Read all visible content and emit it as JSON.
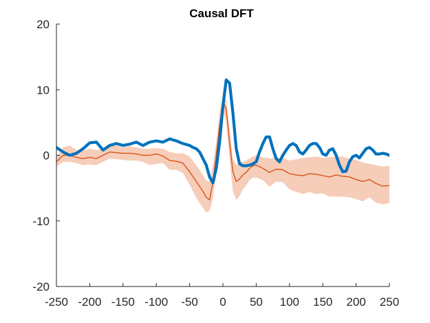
{
  "chart_data": {
    "type": "line",
    "title": "Causal DFT",
    "xlabel": "",
    "ylabel": "",
    "xlim": [
      -250,
      250
    ],
    "ylim": [
      -20,
      20
    ],
    "xticks": [
      -250,
      -200,
      -150,
      -100,
      -50,
      0,
      50,
      100,
      150,
      200,
      250
    ],
    "yticks": [
      -20,
      -10,
      0,
      10,
      20
    ],
    "grid": false,
    "legend": "none",
    "series": [
      {
        "name": "",
        "role": "mean-with-band",
        "color": "#D95319",
        "band_color": "#F6CDB9",
        "x": [
          -250,
          -240,
          -230,
          -220,
          -210,
          -200,
          -190,
          -180,
          -170,
          -160,
          -150,
          -140,
          -130,
          -120,
          -110,
          -100,
          -90,
          -80,
          -70,
          -60,
          -50,
          -40,
          -30,
          -25,
          -20,
          -15,
          -10,
          -5,
          0,
          5,
          10,
          15,
          20,
          25,
          30,
          35,
          40,
          45,
          50,
          60,
          70,
          80,
          90,
          100,
          110,
          120,
          130,
          140,
          150,
          160,
          170,
          180,
          190,
          200,
          210,
          220,
          230,
          240,
          250
        ],
        "values": [
          -1.0,
          0.0,
          0.0,
          -0.3,
          -0.5,
          -0.3,
          -0.5,
          0.0,
          0.5,
          0.4,
          0.3,
          0.3,
          0.2,
          0.0,
          0.0,
          0.2,
          -0.1,
          -0.8,
          -0.9,
          -1.2,
          -2.5,
          -4.0,
          -5.5,
          -6.4,
          -6.8,
          -4.0,
          0.0,
          4.5,
          8.3,
          7.0,
          2.0,
          -2.5,
          -4.0,
          -3.6,
          -3.0,
          -2.6,
          -2.0,
          -1.6,
          -1.5,
          -2.0,
          -2.6,
          -2.1,
          -2.2,
          -2.8,
          -3.0,
          -3.1,
          -2.8,
          -2.9,
          -3.1,
          -3.3,
          -3.0,
          -3.2,
          -3.3,
          -3.7,
          -4.0,
          -3.7,
          -4.3,
          -4.7,
          -4.6
        ],
        "upper": [
          -0.3,
          1.2,
          1.5,
          0.8,
          0.7,
          1.0,
          0.8,
          1.0,
          1.5,
          1.5,
          1.2,
          1.4,
          1.2,
          1.0,
          1.0,
          1.1,
          1.0,
          0.5,
          0.3,
          0.3,
          -0.2,
          -1.5,
          -3.0,
          -3.8,
          -4.0,
          -1.5,
          2.0,
          6.5,
          8.8,
          8.5,
          4.0,
          -0.5,
          -1.5,
          -1.0,
          -1.0,
          -0.8,
          -0.5,
          -0.2,
          0.0,
          -0.3,
          -0.5,
          -0.3,
          -0.4,
          -0.8,
          -0.6,
          -0.4,
          -0.3,
          -0.2,
          -0.4,
          -0.3,
          -0.2,
          -0.2,
          -0.5,
          -0.7,
          -1.1,
          -1.3,
          -1.5,
          -1.7,
          -1.6
        ],
        "lower": [
          -1.7,
          -1.0,
          -1.0,
          -1.2,
          -1.5,
          -1.4,
          -1.5,
          -1.0,
          -0.5,
          -0.6,
          -0.7,
          -0.8,
          -0.8,
          -1.0,
          -1.5,
          -1.3,
          -1.2,
          -2.2,
          -2.2,
          -2.7,
          -4.5,
          -6.5,
          -8.0,
          -8.7,
          -8.5,
          -6.5,
          -2.5,
          2.0,
          7.0,
          5.0,
          -0.5,
          -5.5,
          -6.8,
          -6.2,
          -5.2,
          -4.6,
          -3.8,
          -3.4,
          -3.4,
          -3.8,
          -4.8,
          -4.0,
          -4.1,
          -5.2,
          -5.6,
          -5.9,
          -5.6,
          -5.9,
          -5.8,
          -6.3,
          -6.3,
          -6.3,
          -6.4,
          -6.7,
          -7.0,
          -6.4,
          -7.2,
          -7.5,
          -7.3
        ]
      },
      {
        "name": "",
        "role": "line",
        "color": "#0072BD",
        "x": [
          -250,
          -240,
          -230,
          -220,
          -210,
          -200,
          -190,
          -180,
          -170,
          -160,
          -150,
          -140,
          -130,
          -120,
          -110,
          -100,
          -90,
          -80,
          -70,
          -60,
          -50,
          -45,
          -40,
          -35,
          -30,
          -25,
          -20,
          -15,
          -10,
          -5,
          0,
          5,
          10,
          15,
          20,
          25,
          30,
          35,
          40,
          45,
          50,
          55,
          60,
          65,
          70,
          75,
          80,
          85,
          90,
          95,
          100,
          105,
          110,
          115,
          120,
          125,
          130,
          135,
          140,
          145,
          150,
          155,
          160,
          165,
          170,
          175,
          180,
          185,
          190,
          195,
          200,
          205,
          210,
          215,
          220,
          225,
          230,
          235,
          240,
          245,
          250
        ],
        "values": [
          1.2,
          0.5,
          0.0,
          0.3,
          1.0,
          1.9,
          2.0,
          0.8,
          1.5,
          1.8,
          1.5,
          1.7,
          2.0,
          1.5,
          2.0,
          2.2,
          2.0,
          2.5,
          2.2,
          1.8,
          1.5,
          1.2,
          1.0,
          0.5,
          -0.5,
          -1.5,
          -3.3,
          -4.2,
          -2.0,
          2.0,
          7.5,
          11.5,
          11.0,
          6.5,
          1.0,
          -1.3,
          -1.6,
          -1.6,
          -1.5,
          -1.3,
          -1.0,
          0.5,
          1.8,
          2.8,
          2.8,
          1.0,
          -0.5,
          -1.0,
          0.0,
          0.8,
          1.5,
          1.8,
          1.5,
          0.5,
          0.2,
          0.8,
          1.5,
          1.8,
          1.8,
          1.2,
          0.2,
          0.0,
          0.8,
          1.0,
          0.0,
          -1.5,
          -2.5,
          -2.4,
          -1.0,
          -0.2,
          0.0,
          -0.4,
          0.3,
          1.0,
          1.2,
          0.8,
          0.2,
          0.2,
          0.3,
          0.2,
          0.0
        ]
      }
    ]
  }
}
